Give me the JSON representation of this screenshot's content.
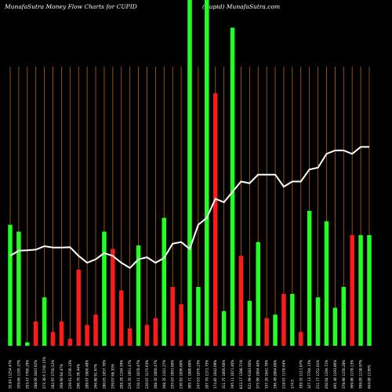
{
  "header": {
    "title_left": "MunafaSutra  Money Flow  Charts for CUPID",
    "title_right": "(Cupid) MunafaSutra.com"
  },
  "colors": {
    "background": "#000000",
    "up_bar": "#22ff22",
    "down_bar": "#ff1a1a",
    "grid": "#b8620e",
    "line": "#ffffff"
  },
  "chart_data": {
    "type": "bar",
    "title": "MunafaSutra  Money Flow  Charts for CUPID",
    "grid": "vertical",
    "bar_ylim": [
      0,
      100
    ],
    "line_ylim": [
      0,
      100
    ],
    "categories": [
      "35.04 11254.47%",
      "359.86 1195.37%",
      "293.47 7766.29%",
      "288.06 3443.02%",
      "273.30 6 2746.15%",
      "282.97 2750.52%",
      "268.60 94.47%",
      "239.61 2736.13%",
      "290.70 36.44%",
      "289.67 1060.48%",
      "266.80 91.67%",
      "280.05 1057.70%",
      "259.07 68.35%",
      "208.28 1194.59%",
      "226.35 1061.47%",
      "210.11 1078.47%",
      "220.07 3175.63%",
      "208.35 1060.47%",
      "208.35 1101.27%",
      "255.03 1093.60%",
      "230.93 1096.60%",
      "309.71 1080.60%",
      "247.63 1070.23%",
      "207.70 1171.75%",
      "174.85 1042.09%",
      "311.75 1066.60%",
      "195.11 1071.40%",
      "833.17 1288.71%",
      "621.99 6183.66%",
      "375.99 1004.40%",
      "337.20 1042.70%",
      "196.49 2064.00%",
      "218.91 1178.64%",
      "174.5",
      "199.35 1111.07%",
      "327.13 7794.13%",
      "211.77 1752.01%",
      "450.04 1194.71%",
      "491.40 1193.86%",
      "378.90 1150.28%",
      "369.86 1178.13%",
      "398.09 1138.97%",
      "464.00 1136%"
    ],
    "values": [
      35,
      33,
      1,
      7,
      14,
      4,
      7,
      2,
      22,
      6,
      9,
      33,
      28,
      16,
      5,
      29,
      6,
      8,
      37,
      17,
      12,
      100,
      17,
      100,
      73,
      10,
      92,
      26,
      13,
      30,
      8,
      9,
      15,
      15,
      4,
      39,
      14,
      36,
      11,
      17,
      32,
      32,
      32
    ],
    "directions": [
      "up",
      "up",
      "up",
      "down",
      "up",
      "down",
      "down",
      "down",
      "down",
      "down",
      "down",
      "up",
      "down",
      "down",
      "down",
      "up",
      "down",
      "down",
      "up",
      "down",
      "down",
      "up",
      "up",
      "up",
      "down",
      "up",
      "up",
      "down",
      "up",
      "up",
      "down",
      "up",
      "down",
      "up",
      "down",
      "up",
      "up",
      "up",
      "up",
      "up",
      "down",
      "up",
      "up"
    ],
    "line": [
      26,
      27.5,
      27.6,
      27.8,
      28.8,
      28.4,
      28.4,
      28.5,
      26,
      24,
      25,
      26.8,
      26,
      24,
      22.5,
      25,
      25.6,
      24,
      25.4,
      29.5,
      30,
      28,
      35,
      37,
      42.5,
      41.5,
      44.5,
      47.5,
      47,
      49.5,
      49.5,
      49.5,
      46,
      47.5,
      47.5,
      51,
      51.5,
      55.5,
      56.5,
      56.5,
      55.5,
      57.5,
      57.5
    ]
  }
}
